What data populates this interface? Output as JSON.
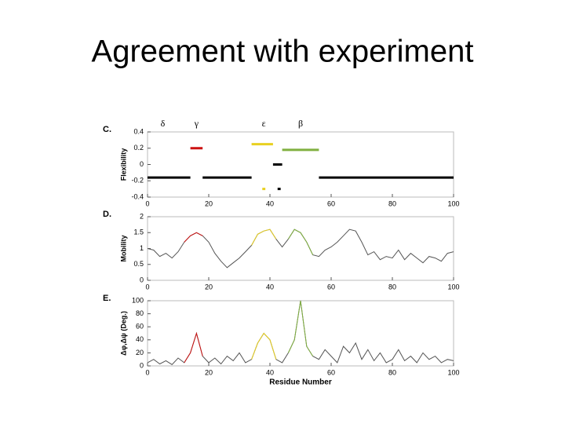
{
  "title": "Agreement with experiment",
  "chart_data": [
    {
      "type": "segments",
      "label": "C.",
      "ylabel": "Flexibility",
      "xlim": [
        0,
        100
      ],
      "ylim": [
        -0.4,
        0.4
      ],
      "xticks": [
        0,
        20,
        40,
        60,
        80,
        100
      ],
      "yticks": [
        -0.4,
        -0.2,
        0,
        0.2,
        0.4
      ],
      "annotations": [
        {
          "text": "δ",
          "x": 5
        },
        {
          "text": "γ",
          "x": 16
        },
        {
          "text": "ε",
          "x": 38
        },
        {
          "text": "β",
          "x": 50
        }
      ],
      "segments": [
        {
          "x": [
            0,
            14
          ],
          "y": -0.16,
          "color": "#000000"
        },
        {
          "x": [
            14,
            18
          ],
          "y": 0.2,
          "color": "#cc1111"
        },
        {
          "x": [
            18,
            34
          ],
          "y": -0.16,
          "color": "#000000"
        },
        {
          "x": [
            34,
            41
          ],
          "y": 0.25,
          "color": "#e8d020"
        },
        {
          "x": [
            41,
            44
          ],
          "y": 0,
          "color": "#000000"
        },
        {
          "x": [
            44,
            56
          ],
          "y": 0.18,
          "color": "#80b040"
        },
        {
          "x": [
            37.5,
            38.5
          ],
          "y": -0.3,
          "color": "#e8d020"
        },
        {
          "x": [
            42.5,
            43.5
          ],
          "y": -0.3,
          "color": "#000000"
        },
        {
          "x": [
            56,
            100
          ],
          "y": -0.16,
          "color": "#000000"
        }
      ]
    },
    {
      "type": "line",
      "label": "D.",
      "ylabel": "Mobility",
      "xlim": [
        0,
        100
      ],
      "ylim": [
        0,
        2
      ],
      "xticks": [
        0,
        20,
        40,
        60,
        80,
        100
      ],
      "yticks": [
        0,
        0.5,
        1,
        1.5,
        2
      ],
      "color": "#555555",
      "x": [
        0,
        2,
        4,
        6,
        8,
        10,
        12,
        14,
        16,
        18,
        20,
        22,
        24,
        26,
        28,
        30,
        32,
        34,
        36,
        38,
        40,
        42,
        44,
        46,
        48,
        50,
        52,
        54,
        56,
        58,
        60,
        62,
        64,
        66,
        68,
        70,
        72,
        74,
        76,
        78,
        80,
        82,
        84,
        86,
        88,
        90,
        92,
        94,
        96,
        98,
        100
      ],
      "values": [
        1.0,
        0.95,
        0.75,
        0.85,
        0.7,
        0.9,
        1.2,
        1.4,
        1.5,
        1.4,
        1.2,
        0.85,
        0.6,
        0.4,
        0.55,
        0.7,
        0.9,
        1.1,
        1.45,
        1.55,
        1.6,
        1.3,
        1.05,
        1.3,
        1.6,
        1.5,
        1.2,
        0.8,
        0.75,
        0.95,
        1.05,
        1.2,
        1.4,
        1.6,
        1.55,
        1.2,
        0.8,
        0.9,
        0.65,
        0.75,
        0.7,
        0.95,
        0.65,
        0.85,
        0.7,
        0.55,
        0.75,
        0.7,
        0.6,
        0.85,
        0.9
      ],
      "highlights": [
        {
          "range": [
            12,
            18
          ],
          "color": "#cc1111"
        },
        {
          "range": [
            34,
            42
          ],
          "color": "#e8d020"
        },
        {
          "range": [
            46,
            54
          ],
          "color": "#80b040"
        }
      ]
    },
    {
      "type": "line",
      "label": "E.",
      "ylabel": "Δφ,Δψ (Deg.)",
      "xlabel": "Residue Number",
      "xlim": [
        0,
        100
      ],
      "ylim": [
        0,
        100
      ],
      "xticks": [
        0,
        20,
        40,
        60,
        80,
        100
      ],
      "yticks": [
        0,
        20,
        40,
        60,
        80,
        100
      ],
      "color": "#555555",
      "x": [
        0,
        2,
        4,
        6,
        8,
        10,
        12,
        14,
        16,
        18,
        20,
        22,
        24,
        26,
        28,
        30,
        32,
        34,
        36,
        38,
        40,
        42,
        44,
        46,
        48,
        50,
        52,
        54,
        56,
        58,
        60,
        62,
        64,
        66,
        68,
        70,
        72,
        74,
        76,
        78,
        80,
        82,
        84,
        86,
        88,
        90,
        92,
        94,
        96,
        98,
        100
      ],
      "values": [
        5,
        10,
        3,
        8,
        2,
        12,
        5,
        20,
        50,
        15,
        5,
        12,
        3,
        15,
        8,
        20,
        5,
        10,
        35,
        50,
        40,
        10,
        5,
        20,
        40,
        100,
        30,
        15,
        10,
        25,
        15,
        5,
        30,
        20,
        35,
        10,
        25,
        8,
        20,
        5,
        10,
        25,
        8,
        15,
        5,
        20,
        10,
        15,
        5,
        10,
        8
      ],
      "highlights": [
        {
          "range": [
            12,
            18
          ],
          "color": "#cc1111"
        },
        {
          "range": [
            34,
            42
          ],
          "color": "#e8d020"
        },
        {
          "range": [
            46,
            54
          ],
          "color": "#80b040"
        }
      ]
    }
  ]
}
